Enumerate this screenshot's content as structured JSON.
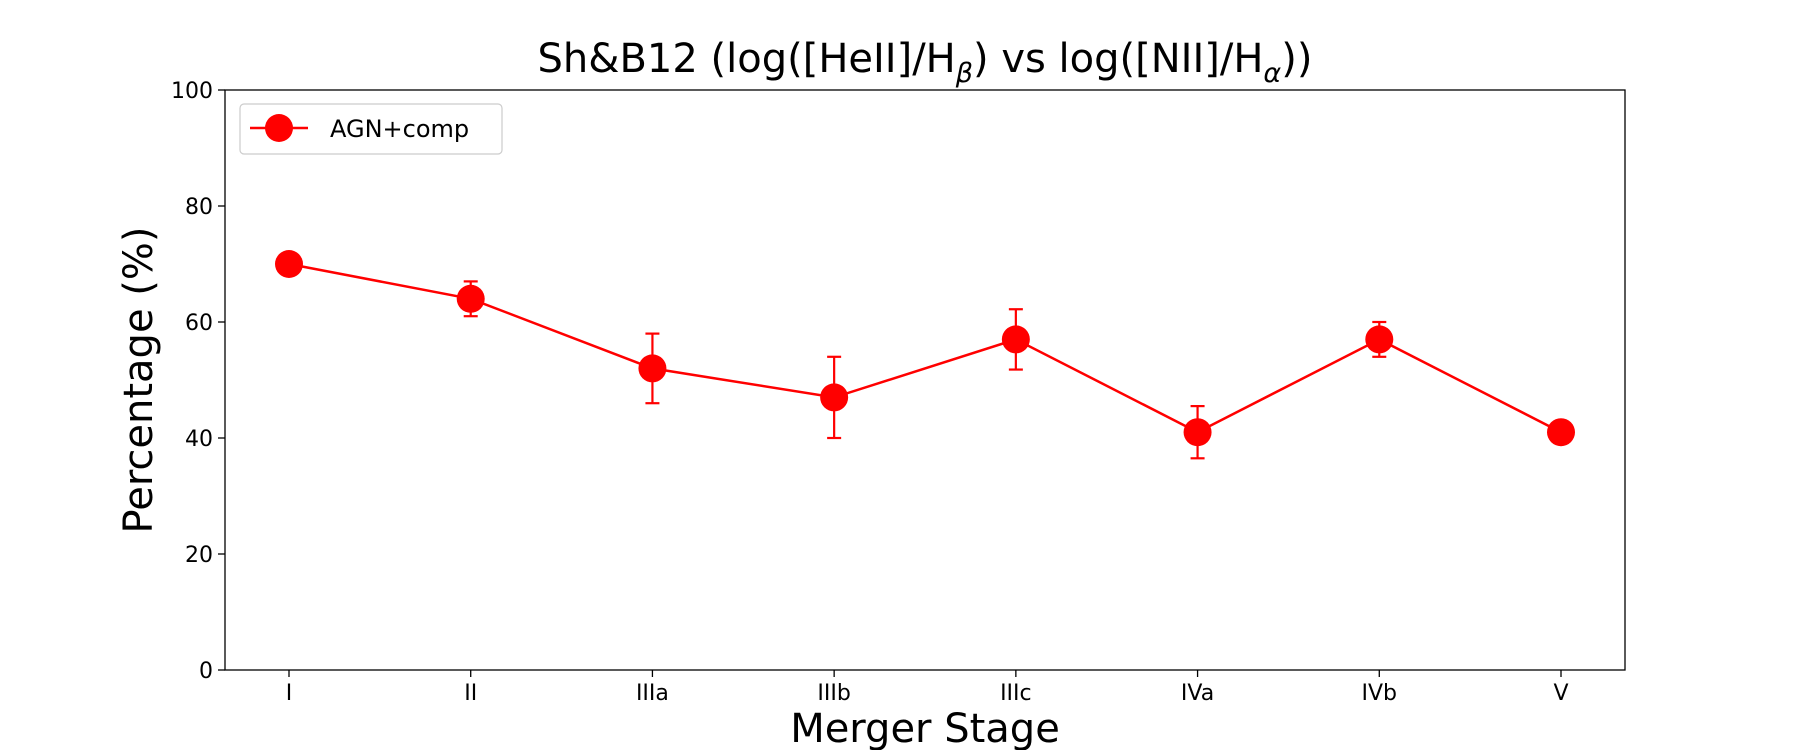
{
  "chart_data": {
    "type": "line",
    "title": {
      "prefix": "Sh&B12 (log([HeII]/H",
      "sub1": "β",
      "middle": ") vs log([NII]/H",
      "sub2": "α",
      "suffix": "))"
    },
    "xlabel": "Merger Stage",
    "ylabel": "Percentage (%)",
    "categories": [
      "I",
      "II",
      "IIIa",
      "IIIb",
      "IIIc",
      "IVa",
      "IVb",
      "V"
    ],
    "ylim": [
      0,
      100
    ],
    "yticks": [
      "0",
      "20",
      "40",
      "60",
      "80",
      "100"
    ],
    "grid": false,
    "legend_position": "top-left",
    "series": [
      {
        "name": "AGN+comp",
        "color": "#ff0000",
        "marker": "circle",
        "values": [
          70,
          64,
          52,
          47,
          57,
          41,
          57,
          41
        ],
        "err_low": [
          0,
          3,
          6,
          7,
          5.2,
          4.5,
          3,
          0
        ],
        "err_high": [
          0,
          3,
          6,
          7,
          5.2,
          4.5,
          3,
          0
        ]
      }
    ]
  }
}
